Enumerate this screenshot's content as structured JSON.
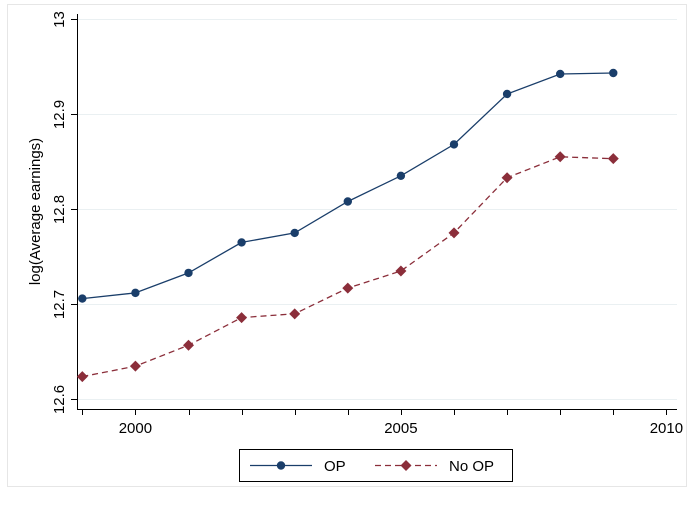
{
  "chart_data": {
    "type": "line",
    "title": "",
    "xlabel": "",
    "ylabel": "log(Average earnings)",
    "xlim": [
      1998.9,
      2010.2
    ],
    "ylim": [
      12.59,
      13.005
    ],
    "xticks": [
      2000,
      2005,
      2010
    ],
    "xticks_minor": [
      1999,
      2000,
      2001,
      2002,
      2003,
      2004,
      2005,
      2006,
      2007,
      2008,
      2009,
      2010
    ],
    "yticks": [
      12.6,
      12.7,
      12.8,
      12.9,
      13
    ],
    "grid": true,
    "legend_position": "bottom",
    "x": [
      1999,
      2000,
      2001,
      2002,
      2003,
      2004,
      2005,
      2006,
      2007,
      2008,
      2009
    ],
    "series": [
      {
        "name": "OP",
        "color": "#1a3e6a",
        "line_style": "solid",
        "marker": "circle",
        "values": [
          12.706,
          12.712,
          12.733,
          12.765,
          12.775,
          12.808,
          12.835,
          12.868,
          12.921,
          12.942,
          12.943
        ]
      },
      {
        "name": "No OP",
        "color": "#8b2e3a",
        "line_style": "dashed",
        "marker": "diamond",
        "values": [
          12.624,
          12.635,
          12.657,
          12.686,
          12.69,
          12.717,
          12.735,
          12.775,
          12.833,
          12.855,
          12.853
        ]
      }
    ]
  }
}
